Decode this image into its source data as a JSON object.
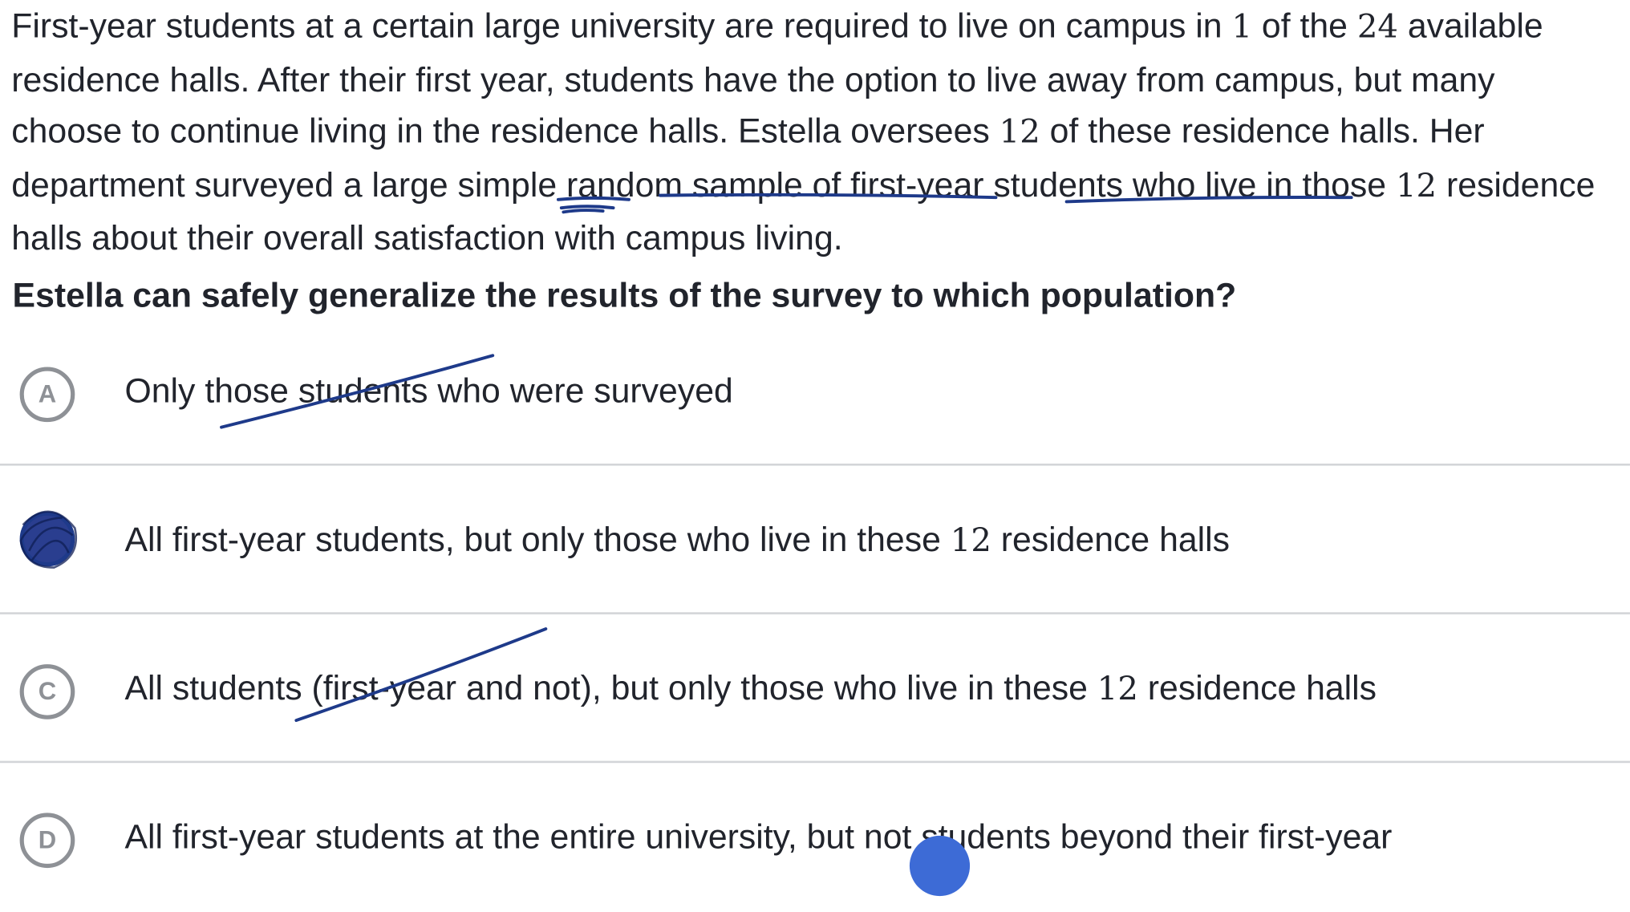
{
  "passage": {
    "part1": "First-year students at a certain large university are required to live on campus in ",
    "num1": "1",
    "part2": " of the ",
    "num2": "24",
    "part3": " available residence halls. After their first year, students have the option to live away from campus, but many choose to continue living in the residence halls. Estella oversees ",
    "num3": "12",
    "part4": " of these residence halls. Her department surveyed a ",
    "underline1": "large",
    "part5": " ",
    "underline2": "simple random sample",
    "part6": " of ",
    "underline3": "first-year students",
    "part7": " who live in those ",
    "num4": "12",
    "part8": " residence halls about their overall satisfaction with campus living."
  },
  "question": "Estella can safely generalize the results of the survey to which population?",
  "choices": [
    {
      "letter": "A",
      "text_before": "Only those students who were surveyed",
      "num": "",
      "text_after": "",
      "selected": false,
      "crossed_out": true
    },
    {
      "letter": "B",
      "text_before": "All first-year students, but only those who live in these ",
      "num": "12",
      "text_after": " residence halls",
      "selected": true,
      "crossed_out": false
    },
    {
      "letter": "C",
      "text_before": "All students (first-year and not), but only those who live in these ",
      "num": "12",
      "text_after": " residence halls",
      "selected": false,
      "crossed_out": true
    },
    {
      "letter": "D",
      "text_before": "All first-year students at the entire university, but not students beyond their first-year",
      "num": "",
      "text_after": "",
      "selected": false,
      "crossed_out": false
    }
  ],
  "colors": {
    "text": "#21242c",
    "ink": "#1e3a8a",
    "selected_fill": "#2a3e8f",
    "cursor": "#3d6bd6",
    "divider": "#d3d5d8",
    "choice_circle": "#8e9196"
  }
}
